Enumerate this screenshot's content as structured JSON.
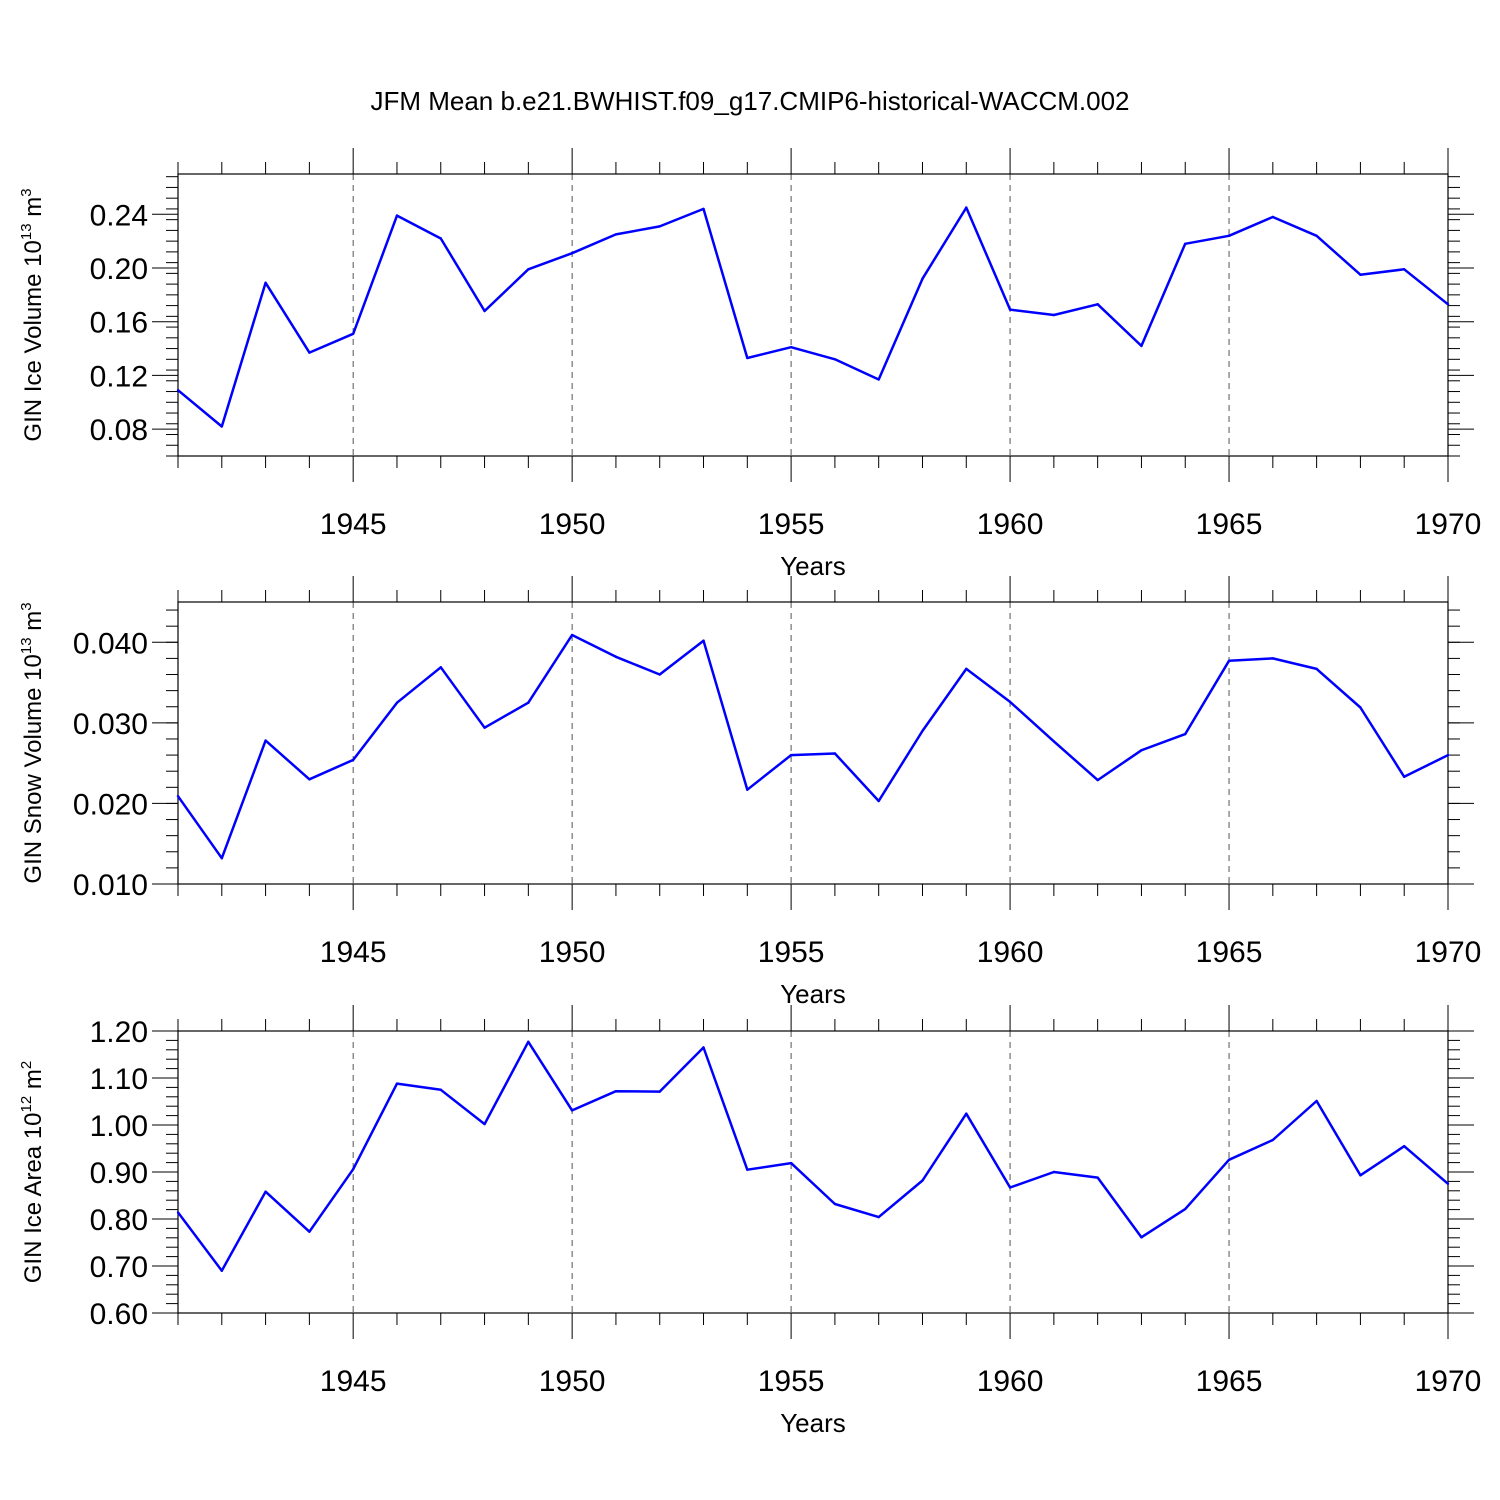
{
  "figure_title": "JFM Mean b.e21.BWHIST.f09_g17.CMIP6-historical-WACCM.002",
  "chart_data": [
    {
      "type": "line",
      "xlabel": "Years",
      "ylabel": {
        "base": "GIN Ice Volume 10",
        "exp": "13",
        "unit": " m",
        "unit_exp": "3"
      },
      "xlim": [
        1941,
        1970
      ],
      "ylim": [
        0.06,
        0.27
      ],
      "x_ticks": [
        1945,
        1950,
        1955,
        1960,
        1965,
        1970
      ],
      "y_ticks": [
        0.08,
        0.12,
        0.16,
        0.2,
        0.24
      ],
      "y_tick_labels": [
        "0.08",
        "0.12",
        "0.16",
        "0.20",
        "0.24"
      ],
      "y_minor_step": 0.008,
      "grid": "dashed vertical lines at major x ticks",
      "color": "#0000ff",
      "x": [
        1941,
        1942,
        1943,
        1944,
        1945,
        1946,
        1947,
        1948,
        1949,
        1950,
        1951,
        1952,
        1953,
        1954,
        1955,
        1956,
        1957,
        1958,
        1959,
        1960,
        1961,
        1962,
        1963,
        1964,
        1965,
        1966,
        1967,
        1968,
        1969,
        1970
      ],
      "y": [
        0.109,
        0.082,
        0.189,
        0.137,
        0.151,
        0.239,
        0.222,
        0.168,
        0.199,
        0.211,
        0.225,
        0.231,
        0.244,
        0.133,
        0.141,
        0.132,
        0.117,
        0.192,
        0.245,
        0.169,
        0.165,
        0.173,
        0.142,
        0.218,
        0.224,
        0.238,
        0.224,
        0.195,
        0.199,
        0.173
      ]
    },
    {
      "type": "line",
      "xlabel": "Years",
      "ylabel": {
        "base": "GIN Snow Volume 10",
        "exp": "13",
        "unit": " m",
        "unit_exp": "3"
      },
      "xlim": [
        1941,
        1970
      ],
      "ylim": [
        0.01,
        0.045
      ],
      "x_ticks": [
        1945,
        1950,
        1955,
        1960,
        1965,
        1970
      ],
      "y_ticks": [
        0.01,
        0.02,
        0.03,
        0.04
      ],
      "y_tick_labels": [
        "0.010",
        "0.020",
        "0.030",
        "0.040"
      ],
      "y_minor_step": 0.002,
      "grid": "dashed vertical lines at major x ticks",
      "color": "#0000ff",
      "x": [
        1941,
        1942,
        1943,
        1944,
        1945,
        1946,
        1947,
        1948,
        1949,
        1950,
        1951,
        1952,
        1953,
        1954,
        1955,
        1956,
        1957,
        1958,
        1959,
        1960,
        1961,
        1962,
        1963,
        1964,
        1965,
        1966,
        1967,
        1968,
        1969,
        1970
      ],
      "y": [
        0.0209,
        0.0132,
        0.0278,
        0.023,
        0.0254,
        0.0325,
        0.0369,
        0.0294,
        0.0325,
        0.0409,
        0.0382,
        0.036,
        0.0402,
        0.0217,
        0.026,
        0.0262,
        0.0203,
        0.029,
        0.0367,
        0.0326,
        0.0277,
        0.0229,
        0.0266,
        0.0286,
        0.0377,
        0.038,
        0.0367,
        0.0319,
        0.0233,
        0.026
      ]
    },
    {
      "type": "line",
      "xlabel": "Years",
      "ylabel": {
        "base": "GIN Ice Area 10",
        "exp": "12",
        "unit": " m",
        "unit_exp": "2"
      },
      "xlim": [
        1941,
        1970
      ],
      "ylim": [
        0.6,
        1.2
      ],
      "x_ticks": [
        1945,
        1950,
        1955,
        1960,
        1965,
        1970
      ],
      "y_ticks": [
        0.6,
        0.7,
        0.8,
        0.9,
        1.0,
        1.1,
        1.2
      ],
      "y_tick_labels": [
        "0.60",
        "0.70",
        "0.80",
        "0.90",
        "1.00",
        "1.10",
        "1.20"
      ],
      "y_minor_step": 0.02,
      "grid": "dashed vertical lines at major x ticks",
      "color": "#0000ff",
      "x": [
        1941,
        1942,
        1943,
        1944,
        1945,
        1946,
        1947,
        1948,
        1949,
        1950,
        1951,
        1952,
        1953,
        1954,
        1955,
        1956,
        1957,
        1958,
        1959,
        1960,
        1961,
        1962,
        1963,
        1964,
        1965,
        1966,
        1967,
        1968,
        1969,
        1970
      ],
      "y": [
        0.814,
        0.69,
        0.858,
        0.773,
        0.906,
        1.088,
        1.075,
        1.002,
        1.177,
        1.031,
        1.072,
        1.071,
        1.165,
        0.905,
        0.919,
        0.832,
        0.804,
        0.882,
        1.024,
        0.867,
        0.9,
        0.888,
        0.761,
        0.821,
        0.926,
        0.968,
        1.051,
        0.893,
        0.955,
        0.875
      ]
    }
  ]
}
